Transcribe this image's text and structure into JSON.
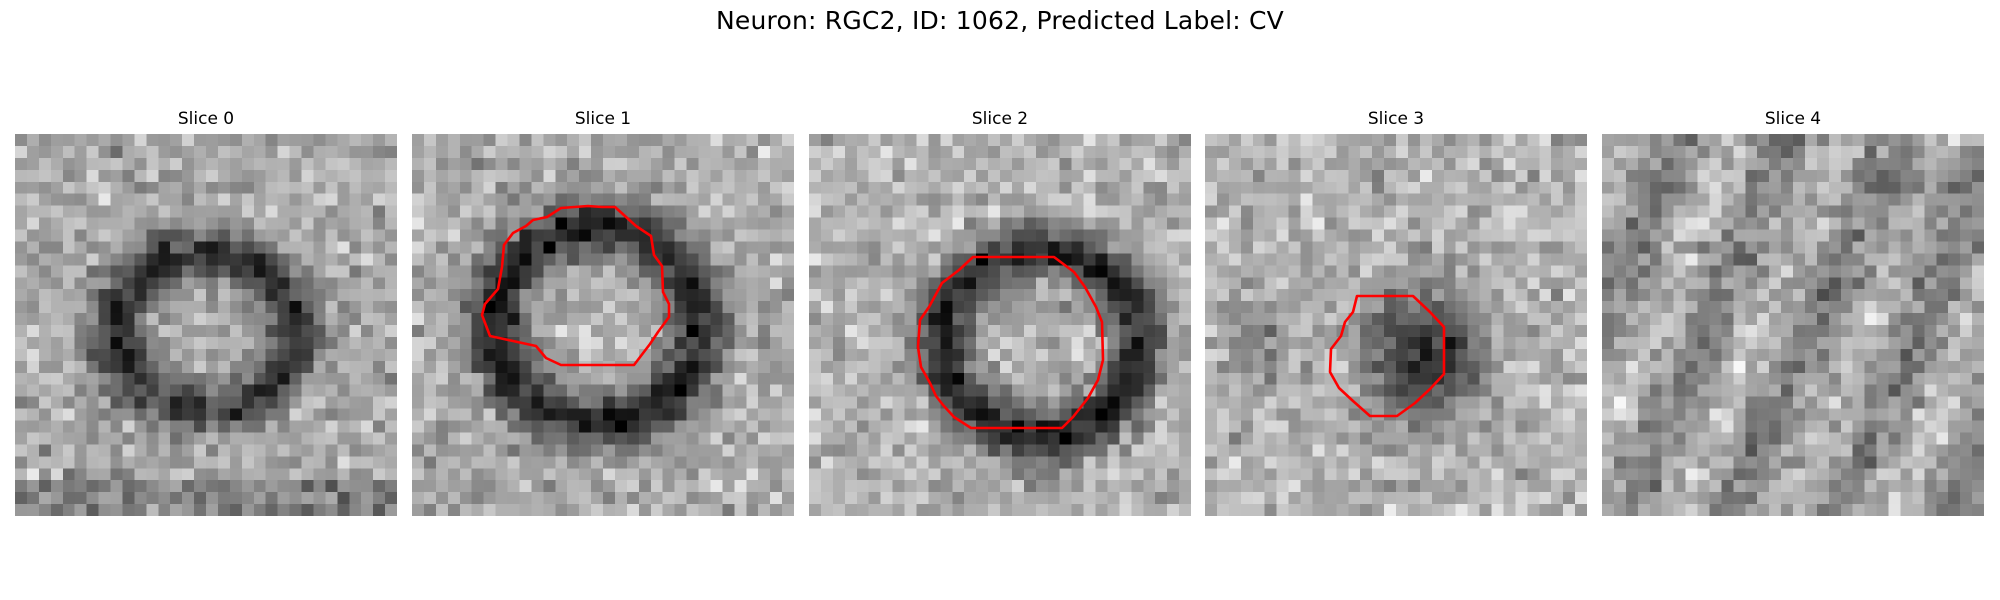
{
  "figure": {
    "title": "Neuron: RGC2, ID: 1062, Predicted Label: CV"
  },
  "slices": [
    {
      "title": "Slice 0",
      "has_contour": false
    },
    {
      "title": "Slice 1",
      "has_contour": true
    },
    {
      "title": "Slice 2",
      "has_contour": true
    },
    {
      "title": "Slice 3",
      "has_contour": true
    },
    {
      "title": "Slice 4",
      "has_contour": false
    }
  ],
  "colors": {
    "contour": "#ff0000",
    "colormap": "gray"
  }
}
